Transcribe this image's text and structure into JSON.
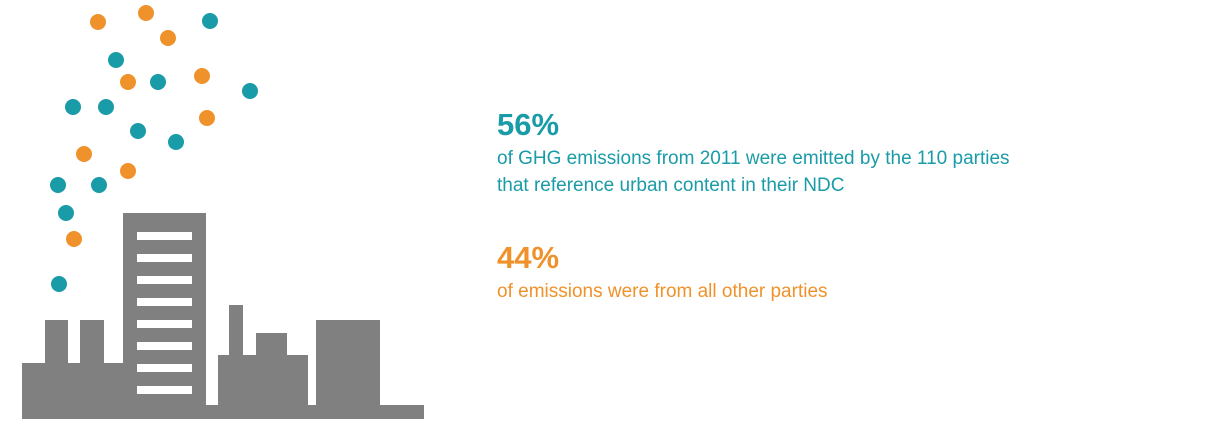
{
  "stats": [
    {
      "figure": "56%",
      "lines": [
        "of GHG emissions from 2011 were emitted by the 110 parties",
        "that reference urban content in their NDC"
      ],
      "color": "#1a9ba8"
    },
    {
      "figure": "44%",
      "lines": [
        "of emissions were from all other parties"
      ],
      "color": "#f0922b"
    }
  ]
}
